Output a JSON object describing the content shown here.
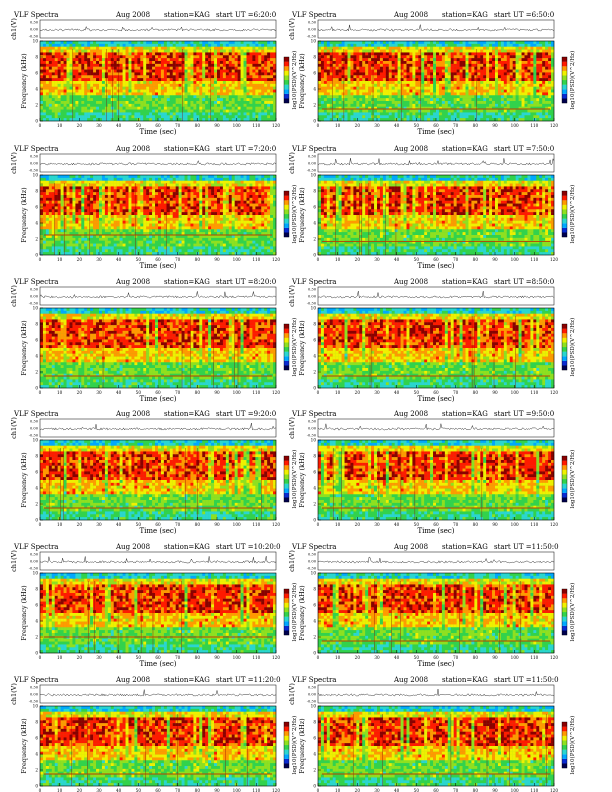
{
  "chart_data": {
    "type": "heatmap",
    "header": {
      "left": "VLF Spectra",
      "date": "Aug 2008",
      "station": "station=KAG",
      "start_prefix": "start UT ="
    },
    "labels": {
      "line_ylabel": "ch1(V)",
      "spec_ylabel": "Frequency (kHz)",
      "xlabel": "Time (sec)",
      "cbar_label": "log10(PSD)(V^2/Hz)"
    },
    "axes": {
      "line_yticks": [
        "0.30",
        "0.00",
        "-0.30"
      ],
      "spec_ylim": [
        0,
        10
      ],
      "spec_yticks": [
        0,
        2,
        4,
        6,
        8,
        10
      ],
      "xlim": [
        0,
        120
      ],
      "xticks": [
        0,
        10,
        20,
        30,
        40,
        50,
        60,
        70,
        80,
        90,
        100,
        110,
        120
      ]
    },
    "colormap": [
      "#00004d",
      "#0a2ad1",
      "#00a8ff",
      "#2ad6d0",
      "#32d24c",
      "#8fe020",
      "#f0f000",
      "#ff9a00",
      "#ff1a00",
      "#8a0000"
    ],
    "panels": [
      {
        "start": "6:20:0",
        "band_level": 0.0
      },
      {
        "start": "6:50:0",
        "band_level": 1.5
      },
      {
        "start": "7:20:0",
        "band_level": 2.5
      },
      {
        "start": "7:50:0",
        "band_level": 1.7
      },
      {
        "start": "8:20:0",
        "band_level": 1.5
      },
      {
        "start": "8:50:0",
        "band_level": 1.5
      },
      {
        "start": "9:20:0",
        "band_level": 1.5
      },
      {
        "start": "9:50:0",
        "band_level": 1.5
      },
      {
        "start": "10:20:0",
        "band_level": 2.0
      },
      {
        "start": "11:50:0",
        "band_level": 1.5
      },
      {
        "start": "11:20:0",
        "band_level": 1.5
      },
      {
        "start": "11:50:0",
        "band_level": 1.5
      }
    ]
  }
}
